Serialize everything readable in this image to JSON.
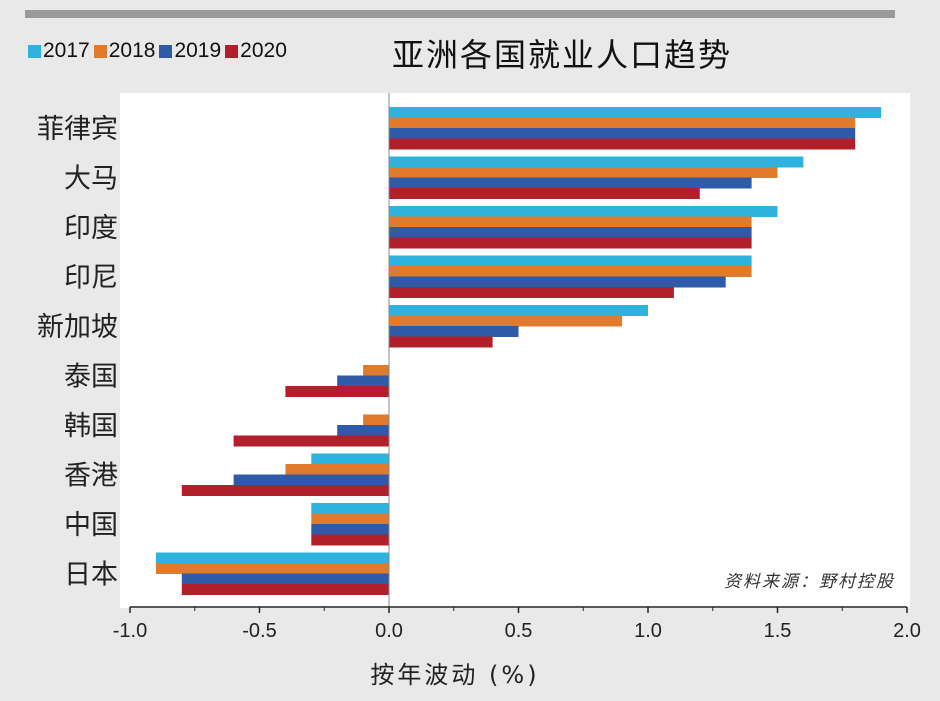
{
  "chart_data": {
    "type": "bar",
    "orientation": "horizontal",
    "title": "亚洲各国就业人口趋势",
    "xlabel": "按年波动 (%)",
    "ylabel": "",
    "xlim": [
      -1.0,
      2.0
    ],
    "xticks": [
      -1.0,
      -0.5,
      0.0,
      0.5,
      1.0,
      1.5,
      2.0
    ],
    "tick_labels": [
      "-1.0",
      "-0.5",
      "0.0",
      "0.5",
      "1.0",
      "1.5",
      "2.0"
    ],
    "categories": [
      "菲律宾",
      "大马",
      "印度",
      "印尼",
      "新加坡",
      "泰国",
      "韩国",
      "香港",
      "中国",
      "日本"
    ],
    "highlight_category": "大马",
    "highlight_color": "#a0239a",
    "legend_position": "top-left",
    "grid": false,
    "series": [
      {
        "name": "2017",
        "color": "#2eb3df",
        "values": [
          1.9,
          1.6,
          1.5,
          1.4,
          1.0,
          0.0,
          0.0,
          -0.3,
          -0.3,
          -0.9
        ]
      },
      {
        "name": "2018",
        "color": "#e07b2e",
        "values": [
          1.8,
          1.5,
          1.4,
          1.4,
          0.9,
          -0.1,
          -0.1,
          -0.4,
          -0.3,
          -0.9
        ]
      },
      {
        "name": "2019",
        "color": "#2f5aa8",
        "values": [
          1.8,
          1.4,
          1.4,
          1.3,
          0.5,
          -0.2,
          -0.2,
          -0.6,
          -0.3,
          -0.8
        ]
      },
      {
        "name": "2020",
        "color": "#b1202a",
        "values": [
          1.8,
          1.2,
          1.4,
          1.1,
          0.4,
          -0.4,
          -0.6,
          -0.8,
          -0.3,
          -0.8
        ]
      }
    ],
    "annotation": "资料来源：野村控股"
  }
}
